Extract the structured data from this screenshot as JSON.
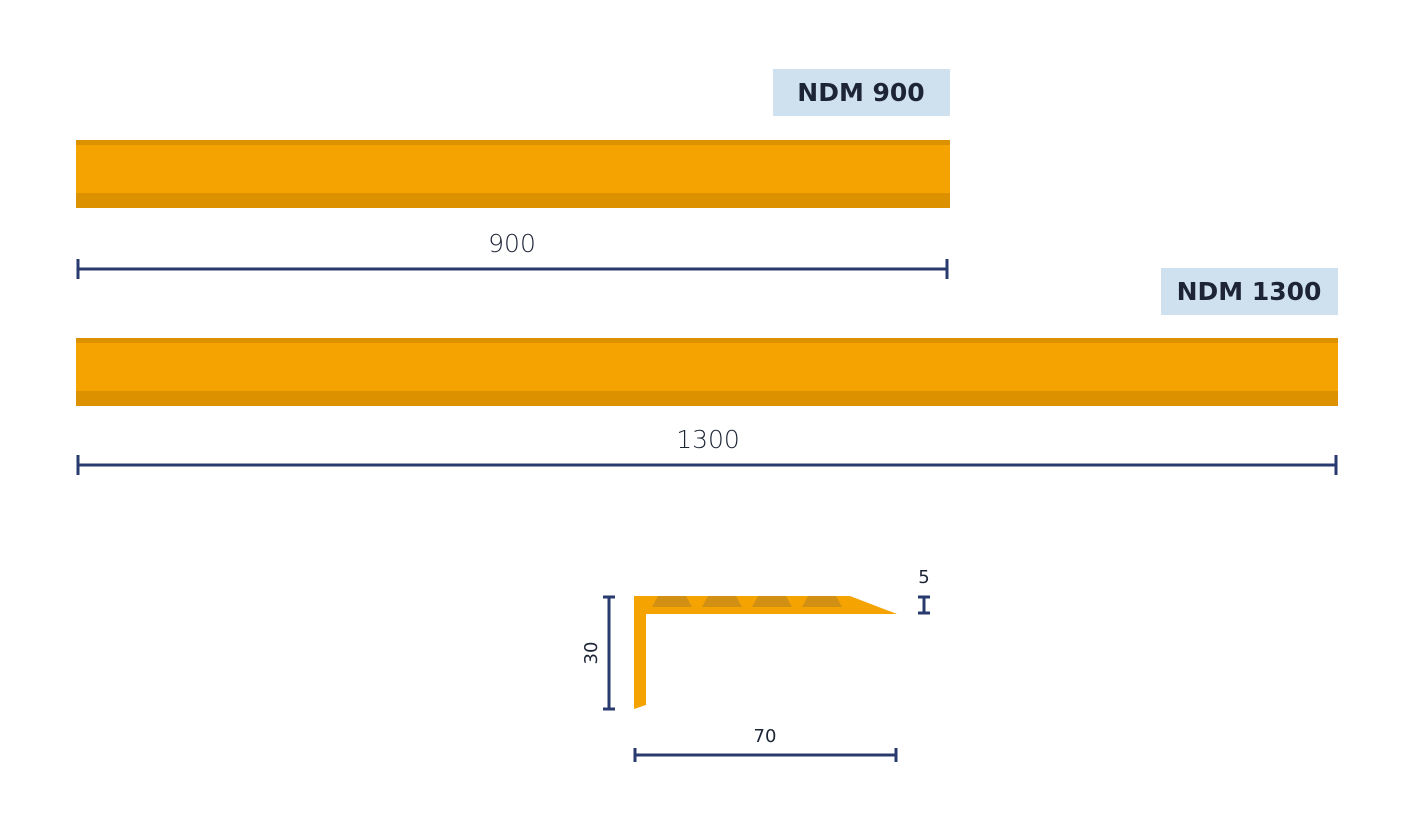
{
  "profiles": [
    {
      "label": "NDM 900",
      "length": "900"
    },
    {
      "label": "NDM 1300",
      "length": "1300"
    }
  ],
  "cross_section": {
    "thickness": "5",
    "height": "30",
    "width": "70"
  }
}
